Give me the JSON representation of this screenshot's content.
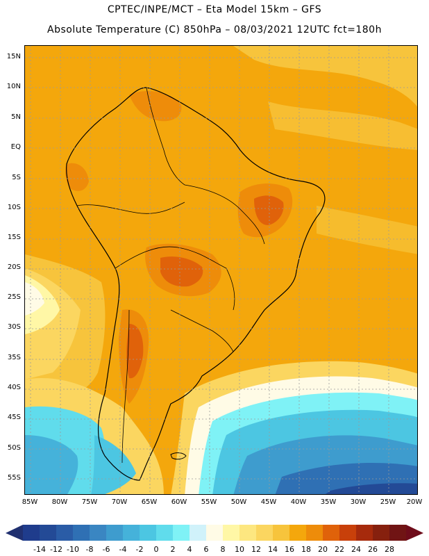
{
  "title_line1": "CPTEC/INPE/MCT –  Eta Model 15km – GFS",
  "title_line2": "Absolute Temperature (C) 850hPa – 08/03/2021 12UTC fct=180h",
  "lat_labels": [
    "15N",
    "10N",
    "5N",
    "EQ",
    "5S",
    "10S",
    "15S",
    "20S",
    "25S",
    "30S",
    "35S",
    "40S",
    "45S",
    "50S",
    "55S"
  ],
  "lon_labels": [
    "85W",
    "80W",
    "75W",
    "70W",
    "65W",
    "60W",
    "55W",
    "50W",
    "45W",
    "40W",
    "35W",
    "30W",
    "25W",
    "20W"
  ],
  "colorbar": {
    "labels": [
      "-14",
      "-12",
      "-10",
      "-8",
      "-6",
      "-4",
      "-2",
      "0",
      "2",
      "4",
      "6",
      "8",
      "10",
      "12",
      "14",
      "16",
      "18",
      "20",
      "22",
      "24",
      "26",
      "28"
    ],
    "colors": [
      "#1f3c8c",
      "#234a96",
      "#2a5ca6",
      "#2f70b4",
      "#3a86c2",
      "#3e9cce",
      "#45b2da",
      "#4cc6e2",
      "#60dcec",
      "#7ff2f6",
      "#d0f2fa",
      "#fffbe6",
      "#fff7a6",
      "#fde780",
      "#fbd660",
      "#f7c43c",
      "#f4a70c",
      "#ee8c0a",
      "#e0620a",
      "#c8400a",
      "#a62a0c",
      "#86200e",
      "#701414"
    ],
    "left_arrow_color": "#203070",
    "right_arrow_color": "#6e0c1a"
  }
}
